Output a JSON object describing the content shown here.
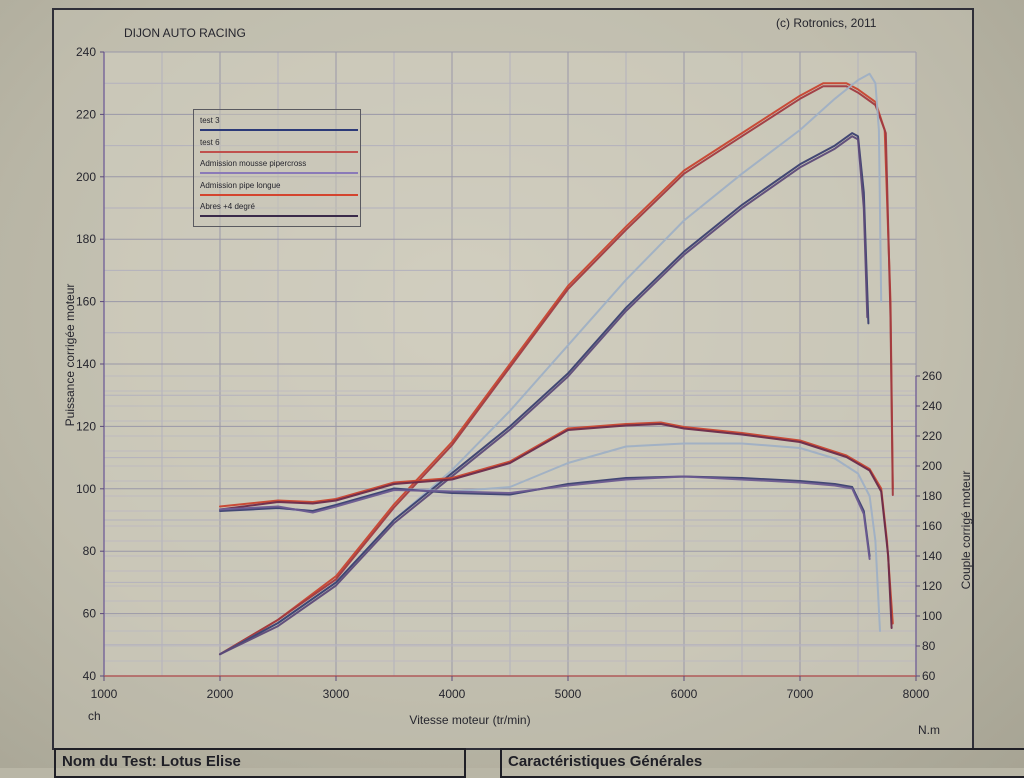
{
  "header": {
    "company": "DIJON AUTO RACING",
    "copyright": "(c) Rotronics, 2011"
  },
  "legend": [
    {
      "label": "test 3",
      "color": "#2c3a78"
    },
    {
      "label": "test 6",
      "color": "#c0504d"
    },
    {
      "label": "Admission mousse pipercross",
      "color": "#8a7ab8"
    },
    {
      "label": "Admission pipe longue",
      "color": "#d4442e"
    },
    {
      "label": "Abres +4 degré",
      "color": "#3a2a4a"
    }
  ],
  "axes": {
    "xlabel": "Vitesse moteur (tr/min)",
    "ylabel_left": "Puissance corrigée moteur",
    "ylabel_right": "Couple corrigé moteur",
    "left_unit": "ch",
    "right_unit": "N.m"
  },
  "footer": {
    "test_name": "Nom du Test: Lotus Elise",
    "characteristics": "Caractéristiques Générales"
  },
  "chart_data": {
    "type": "line",
    "title": "",
    "xlabel": "Vitesse moteur (tr/min)",
    "ylabel": "Puissance corrigée moteur",
    "y2label": "Couple corrigé moteur",
    "xlim": [
      1000,
      8000
    ],
    "ylim": [
      40,
      240
    ],
    "y2lim": [
      60,
      260
    ],
    "x_ticks": [
      1000,
      2000,
      3000,
      4000,
      5000,
      6000,
      7000,
      8000
    ],
    "y_ticks": [
      40,
      60,
      80,
      100,
      120,
      140,
      160,
      180,
      200,
      220,
      240
    ],
    "y2_ticks": [
      60,
      80,
      100,
      120,
      140,
      160,
      180,
      200,
      220,
      240,
      260
    ],
    "grid": true,
    "legend_position": "top-left",
    "series": [
      {
        "name": "Admission pipe longue",
        "color": "#c8452f",
        "axis": "left",
        "x": [
          2000,
          2500,
          3000,
          3500,
          4000,
          4500,
          5000,
          5500,
          6000,
          6500,
          7000,
          7200,
          7400,
          7500,
          7650,
          7730,
          7780,
          7800
        ],
        "y": [
          47,
          58,
          72,
          95,
          115,
          140,
          165,
          184,
          202,
          214,
          226,
          230,
          230,
          228,
          224,
          215,
          160,
          100
        ]
      },
      {
        "name": "test 6",
        "color": "#a03a40",
        "axis": "left",
        "x": [
          2000,
          2500,
          3000,
          3500,
          4000,
          4500,
          5000,
          5500,
          6000,
          6500,
          7000,
          7200,
          7400,
          7500,
          7650,
          7740,
          7780,
          7800
        ],
        "y": [
          47,
          58,
          71,
          94,
          114,
          139,
          164,
          183,
          201,
          213,
          225,
          229,
          229,
          227,
          223,
          214,
          155,
          98
        ]
      },
      {
        "name": "Admission mousse pipercross",
        "color": "#9fb0c4",
        "axis": "left",
        "x": [
          2000,
          2500,
          3000,
          3500,
          4000,
          4500,
          5000,
          5500,
          6000,
          6500,
          7000,
          7300,
          7500,
          7600,
          7650,
          7680,
          7700
        ],
        "y": [
          47,
          57,
          70,
          90,
          106,
          125,
          146,
          167,
          186,
          201,
          215,
          225,
          231,
          233,
          230,
          215,
          160
        ]
      },
      {
        "name": "test 3",
        "color": "#3a4070",
        "axis": "left",
        "x": [
          2000,
          2500,
          3000,
          3500,
          4000,
          4500,
          5000,
          5500,
          6000,
          6500,
          7000,
          7300,
          7450,
          7500,
          7550,
          7590
        ],
        "y": [
          47,
          57,
          70,
          90,
          105,
          120,
          137,
          158,
          176,
          191,
          204,
          210,
          214,
          213,
          195,
          153
        ]
      },
      {
        "name": "Abres +4 degré",
        "color": "#5c4a78",
        "axis": "left",
        "x": [
          2000,
          2500,
          3000,
          3500,
          4000,
          4500,
          5000,
          5500,
          6000,
          6500,
          7000,
          7300,
          7450,
          7500,
          7550,
          7580
        ],
        "y": [
          47,
          56,
          69,
          89,
          104,
          119,
          136,
          157,
          175,
          190,
          203,
          209,
          213,
          212,
          190,
          155
        ]
      },
      {
        "name": "Admission pipe longue",
        "color": "#c8452f",
        "axis": "right",
        "x": [
          2000,
          2500,
          2800,
          3000,
          3500,
          4000,
          4500,
          5000,
          5500,
          5800,
          6000,
          6500,
          7000,
          7400,
          7600,
          7700,
          7750,
          7800
        ],
        "y": [
          173,
          177,
          176,
          178,
          189,
          192,
          203,
          225,
          228,
          229,
          226,
          222,
          217,
          207,
          198,
          185,
          150,
          95
        ]
      },
      {
        "name": "test 6",
        "color": "#6a2a4a",
        "axis": "right",
        "x": [
          2000,
          2500,
          2800,
          3000,
          3500,
          4000,
          4500,
          5000,
          5500,
          5800,
          6000,
          6500,
          7000,
          7400,
          7600,
          7700,
          7760,
          7790
        ],
        "y": [
          171,
          176,
          175,
          177,
          188,
          191,
          202,
          224,
          227,
          228,
          225,
          221,
          216,
          206,
          197,
          183,
          140,
          92
        ]
      },
      {
        "name": "Admission mousse pipercross",
        "color": "#9fb0c4",
        "axis": "right",
        "x": [
          2000,
          2500,
          2800,
          3000,
          3500,
          4000,
          4500,
          5000,
          5500,
          6000,
          6500,
          7000,
          7300,
          7500,
          7600,
          7650,
          7690
        ],
        "y": [
          171,
          172,
          170,
          174,
          185,
          183,
          186,
          202,
          213,
          215,
          215,
          212,
          205,
          195,
          180,
          150,
          90
        ]
      },
      {
        "name": "test 3",
        "color": "#3a4070",
        "axis": "right",
        "x": [
          2000,
          2500,
          2800,
          3000,
          3500,
          4000,
          4500,
          5000,
          5500,
          6000,
          6500,
          7000,
          7300,
          7450,
          7550,
          7600
        ],
        "y": [
          170,
          172,
          170,
          174,
          185,
          182,
          181,
          188,
          192,
          193,
          192,
          190,
          188,
          186,
          170,
          140
        ]
      },
      {
        "name": "Abres +4 degré",
        "color": "#6a5a90",
        "axis": "right",
        "x": [
          2000,
          2500,
          2800,
          3000,
          3500,
          4000,
          4500,
          5000,
          5500,
          6000,
          6500,
          7000,
          7300,
          7450,
          7550,
          7600
        ],
        "y": [
          171,
          173,
          169,
          173,
          184,
          183,
          182,
          187,
          191,
          193,
          191,
          189,
          187,
          185,
          168,
          138
        ]
      }
    ]
  }
}
